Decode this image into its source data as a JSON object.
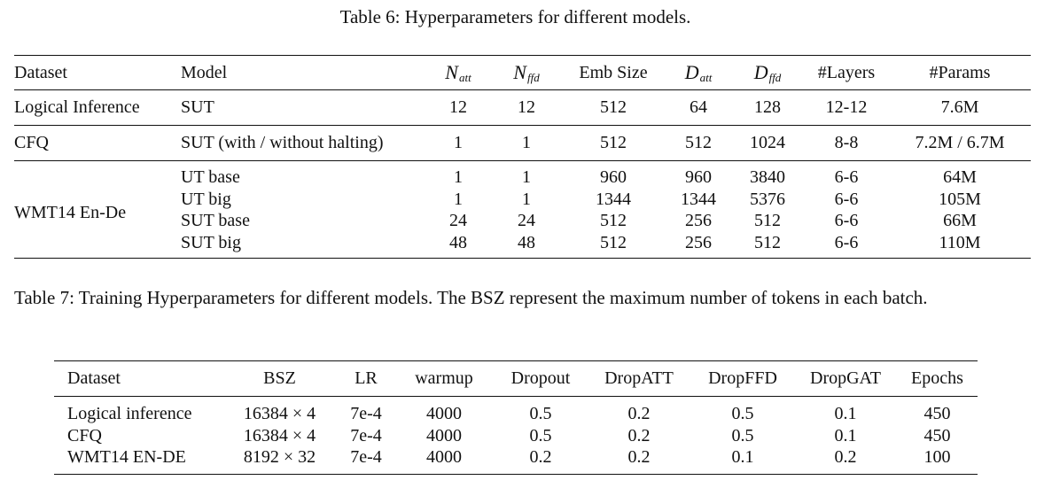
{
  "table6": {
    "caption": "Table 6: Hyperparameters for different models.",
    "headers": {
      "dataset": "Dataset",
      "model": "Model",
      "n_att_base": "N",
      "n_att_sub": "att",
      "n_ffd_base": "N",
      "n_ffd_sub": "ffd",
      "emb_size": "Emb Size",
      "d_att_base": "D",
      "d_att_sub": "att",
      "d_ffd_base": "D",
      "d_ffd_sub": "ffd",
      "layers": "#Layers",
      "params": "#Params"
    },
    "rows": [
      {
        "dataset": "Logical Inference",
        "model": "SUT",
        "n_att": "12",
        "n_ffd": "12",
        "emb_size": "512",
        "d_att": "64",
        "d_ffd": "128",
        "layers": "12-12",
        "params": "7.6M"
      },
      {
        "dataset": "CFQ",
        "model": "SUT (with / without halting)",
        "n_att": "1",
        "n_ffd": "1",
        "emb_size": "512",
        "d_att": "512",
        "d_ffd": "1024",
        "layers": "8-8",
        "params": "7.2M / 6.7M"
      }
    ],
    "wmt_group": {
      "dataset": "WMT14 En-De",
      "rows": [
        {
          "model": "UT base",
          "n_att": "1",
          "n_ffd": "1",
          "emb_size": "960",
          "d_att": "960",
          "d_ffd": "3840",
          "layers": "6-6",
          "params": "64M"
        },
        {
          "model": "UT big",
          "n_att": "1",
          "n_ffd": "1",
          "emb_size": "1344",
          "d_att": "1344",
          "d_ffd": "5376",
          "layers": "6-6",
          "params": "105M"
        },
        {
          "model": "SUT base",
          "n_att": "24",
          "n_ffd": "24",
          "emb_size": "512",
          "d_att": "256",
          "d_ffd": "512",
          "layers": "6-6",
          "params": "66M"
        },
        {
          "model": "SUT big",
          "n_att": "48",
          "n_ffd": "48",
          "emb_size": "512",
          "d_att": "256",
          "d_ffd": "512",
          "layers": "6-6",
          "params": "110M"
        }
      ]
    }
  },
  "table7": {
    "caption": "Table 7: Training Hyperparameters for different models. The BSZ represent the maximum number of tokens in each batch.",
    "headers": {
      "dataset": "Dataset",
      "bsz": "BSZ",
      "lr": "LR",
      "warmup": "warmup",
      "dropout": "Dropout",
      "dropatt": "DropATT",
      "dropffd": "DropFFD",
      "dropgat": "DropGAT",
      "epochs": "Epochs"
    },
    "rows": [
      {
        "dataset": "Logical inference",
        "bsz": "16384 × 4",
        "lr": "7e-4",
        "warmup": "4000",
        "dropout": "0.5",
        "dropatt": "0.2",
        "dropffd": "0.5",
        "dropgat": "0.1",
        "epochs": "450"
      },
      {
        "dataset": "CFQ",
        "bsz": "16384 × 4",
        "lr": "7e-4",
        "warmup": "4000",
        "dropout": "0.5",
        "dropatt": "0.2",
        "dropffd": "0.5",
        "dropgat": "0.1",
        "epochs": "450"
      },
      {
        "dataset": "WMT14 EN-DE",
        "bsz": "8192 × 32",
        "lr": "7e-4",
        "warmup": "4000",
        "dropout": "0.2",
        "dropatt": "0.2",
        "dropffd": "0.1",
        "dropgat": "0.2",
        "epochs": "100"
      }
    ]
  }
}
